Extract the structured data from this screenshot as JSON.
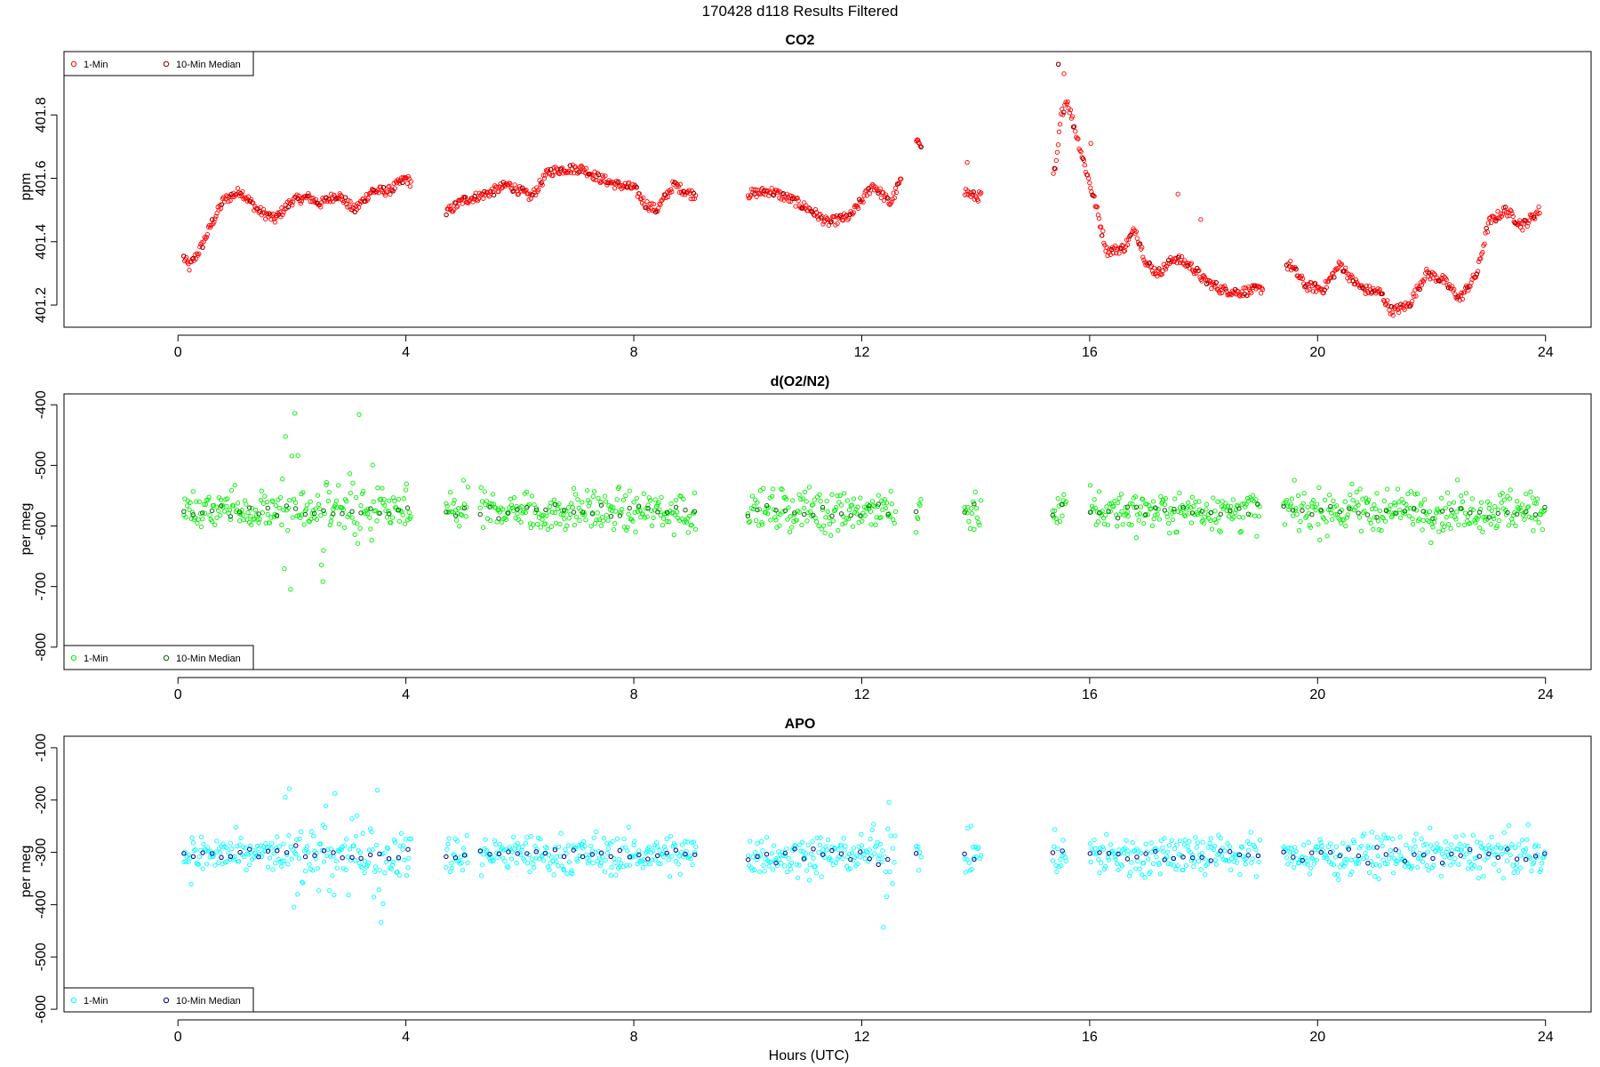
{
  "figure": {
    "title": "170428   d118   Results Filtered",
    "xlabel": "Hours (UTC)"
  },
  "legend": {
    "label_1min": "1-Min",
    "label_median": "10-Min Median"
  },
  "chart_data": [
    {
      "type": "scatter",
      "title": "CO2",
      "ylabel": "ppm",
      "xlim": [
        -2,
        24.8
      ],
      "ylim": [
        401.13,
        402.0
      ],
      "x_ticks": [
        0,
        4,
        8,
        12,
        16,
        20,
        24
      ],
      "y_ticks": [
        401.2,
        401.4,
        401.6,
        401.8
      ],
      "legend_position": "top-left",
      "colors": {
        "one_min": "#ff0000",
        "median": "#8b0000"
      },
      "series": [
        {
          "name": "1-Min",
          "profile": [
            [
              0.1,
              401.35
            ],
            [
              0.2,
              401.32
            ],
            [
              0.4,
              401.38
            ],
            [
              0.6,
              401.46
            ],
            [
              0.8,
              401.53
            ],
            [
              1.1,
              401.56
            ],
            [
              1.4,
              401.5
            ],
            [
              1.7,
              401.47
            ],
            [
              2.0,
              401.53
            ],
            [
              2.3,
              401.54
            ],
            [
              2.5,
              401.52
            ],
            [
              2.8,
              401.55
            ],
            [
              3.1,
              401.5
            ],
            [
              3.4,
              401.56
            ],
            [
              3.7,
              401.56
            ],
            [
              4.0,
              401.6
            ],
            [
              4.7,
              401.49
            ],
            [
              5.0,
              401.53
            ],
            [
              5.4,
              401.55
            ],
            [
              5.8,
              401.58
            ],
            [
              6.2,
              401.54
            ],
            [
              6.5,
              401.62
            ],
            [
              6.8,
              401.63
            ],
            [
              7.1,
              401.63
            ],
            [
              7.4,
              401.6
            ],
            [
              7.7,
              401.58
            ],
            [
              8.0,
              401.57
            ],
            [
              8.2,
              401.52
            ],
            [
              8.4,
              401.5
            ],
            [
              8.7,
              401.58
            ],
            [
              9.0,
              401.55
            ],
            [
              10.0,
              401.55
            ],
            [
              10.4,
              401.56
            ],
            [
              10.8,
              401.53
            ],
            [
              11.1,
              401.5
            ],
            [
              11.4,
              401.46
            ],
            [
              11.8,
              401.48
            ],
            [
              12.2,
              401.58
            ],
            [
              12.5,
              401.52
            ],
            [
              12.6,
              401.56
            ],
            [
              13.0,
              401.72
            ],
            [
              13.8,
              401.56
            ],
            [
              14.0,
              401.54
            ],
            [
              15.4,
              401.62
            ],
            [
              15.5,
              401.8
            ],
            [
              15.6,
              401.85
            ],
            [
              15.9,
              401.65
            ],
            [
              16.1,
              401.52
            ],
            [
              16.3,
              401.37
            ],
            [
              16.6,
              401.38
            ],
            [
              16.8,
              401.44
            ],
            [
              17.0,
              401.33
            ],
            [
              17.2,
              401.3
            ],
            [
              17.5,
              401.35
            ],
            [
              17.8,
              401.32
            ],
            [
              18.0,
              401.28
            ],
            [
              18.3,
              401.25
            ],
            [
              18.6,
              401.24
            ],
            [
              19.0,
              401.25
            ],
            [
              19.5,
              401.33
            ],
            [
              19.8,
              401.26
            ],
            [
              20.1,
              401.25
            ],
            [
              20.4,
              401.33
            ],
            [
              20.6,
              401.28
            ],
            [
              20.8,
              401.25
            ],
            [
              21.1,
              401.24
            ],
            [
              21.3,
              401.18
            ],
            [
              21.6,
              401.2
            ],
            [
              21.9,
              401.3
            ],
            [
              22.2,
              401.28
            ],
            [
              22.5,
              401.22
            ],
            [
              22.8,
              401.3
            ],
            [
              23.0,
              401.46
            ],
            [
              23.3,
              401.5
            ],
            [
              23.6,
              401.45
            ],
            [
              23.9,
              401.5
            ]
          ],
          "breaks": [
            [
              4.1,
              4.7
            ],
            [
              9.1,
              10.0
            ],
            [
              12.7,
              12.95
            ],
            [
              13.05,
              13.8
            ],
            [
              14.1,
              15.35
            ],
            [
              19.05,
              19.45
            ]
          ]
        },
        {
          "name": "10-Min Median"
        }
      ]
    },
    {
      "type": "scatter",
      "title": "d(O2/N2)",
      "ylabel": "per meg",
      "xlim": [
        -2,
        24.8
      ],
      "ylim": [
        -837,
        -382
      ],
      "x_ticks": [
        0,
        4,
        8,
        12,
        16,
        20,
        24
      ],
      "y_ticks": [
        -400,
        -500,
        -600,
        -700,
        -800
      ],
      "legend_position": "bottom-left",
      "colors": {
        "one_min": "#00ee00",
        "median": "#006400"
      },
      "series": [
        {
          "name": "1-Min",
          "center": -575,
          "spread": 25,
          "segments": [
            [
              0.1,
              4.1
            ],
            [
              4.7,
              5.1
            ],
            [
              5.3,
              9.1
            ],
            [
              10.0,
              12.6
            ],
            [
              12.95,
              13.05
            ],
            [
              13.8,
              14.1
            ],
            [
              15.35,
              15.6
            ],
            [
              16.0,
              19.0
            ],
            [
              19.4,
              24.0
            ]
          ]
        },
        {
          "name": "10-Min Median"
        }
      ]
    },
    {
      "type": "scatter",
      "title": "APO",
      "ylabel": "per meg",
      "xlim": [
        -2,
        24.8
      ],
      "ylim": [
        -605,
        -78
      ],
      "x_ticks": [
        0,
        4,
        8,
        12,
        16,
        20,
        24
      ],
      "y_ticks": [
        -100,
        -200,
        -300,
        -400,
        -500,
        -600
      ],
      "legend_position": "bottom-left",
      "colors": {
        "one_min": "#00ffff",
        "median": "#00008b"
      },
      "series": [
        {
          "name": "1-Min",
          "center": -305,
          "spread": 28,
          "segments": [
            [
              0.1,
              4.1
            ],
            [
              4.7,
              5.1
            ],
            [
              5.3,
              9.1
            ],
            [
              10.0,
              12.6
            ],
            [
              12.95,
              13.05
            ],
            [
              13.8,
              14.1
            ],
            [
              15.35,
              15.6
            ],
            [
              16.0,
              19.0
            ],
            [
              19.4,
              24.0
            ]
          ]
        },
        {
          "name": "10-Min Median"
        }
      ]
    }
  ]
}
